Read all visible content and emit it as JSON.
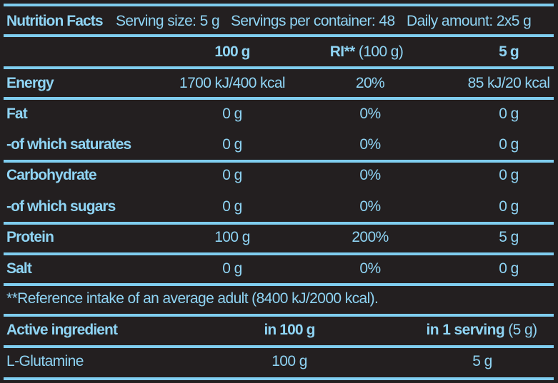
{
  "header": {
    "title": "Nutrition Facts",
    "serving_size": "Serving size: 5 g",
    "servings_per_container": "Servings per container: 48",
    "daily_amount": "Daily amount: 2x5 g"
  },
  "columns": {
    "per100": "100 g",
    "ri_bold": "RI**",
    "ri_rest": " (100 g)",
    "per_serving": "5 g"
  },
  "rows": [
    {
      "label": "Energy",
      "per100": "1700 kJ/400 kcal",
      "ri": "20%",
      "per_serving": "85 kJ/20 kcal"
    },
    {
      "label": "Fat",
      "per100": "0 g",
      "ri": "0%",
      "per_serving": "0 g"
    },
    {
      "label": "-of which saturates",
      "per100": "0 g",
      "ri": "0%",
      "per_serving": "0 g"
    },
    {
      "label": "Carbohydrate",
      "per100": "0 g",
      "ri": "0%",
      "per_serving": "0 g"
    },
    {
      "label": "-of which sugars",
      "per100": "0 g",
      "ri": "0%",
      "per_serving": "0 g"
    },
    {
      "label": "Protein",
      "per100": "100 g",
      "ri": "200%",
      "per_serving": "5 g"
    },
    {
      "label": "Salt",
      "per100": "0 g",
      "ri": "0%",
      "per_serving": "0 g"
    }
  ],
  "footnote": "**Reference intake of an average adult (8400 kJ/2000 kcal).",
  "active": {
    "header": {
      "label": "Active ingredient",
      "per100": "in 100 g",
      "per_serving_bold": "in 1 serving",
      "per_serving_rest": " (5 g)"
    },
    "rows": [
      {
        "label": "L-Glutamine",
        "per100": "100 g",
        "per_serving": "5 g"
      }
    ]
  },
  "colors": {
    "background": "#231f20",
    "accent": "#8fd4f4"
  }
}
